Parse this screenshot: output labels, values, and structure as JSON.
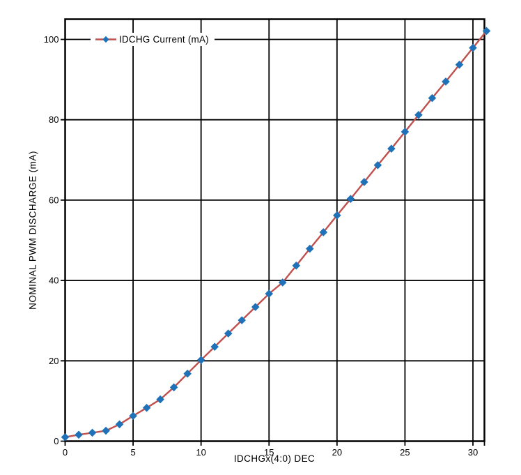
{
  "page": {
    "background": "#ffffff"
  },
  "chart_data": {
    "type": "line",
    "title": "",
    "xlabel": "IDCHGx(4:0) DEC",
    "ylabel": "NOMINAL PWM DISCHARGE (mA)",
    "legend_label": "IDCHG Current (mA)",
    "legend_position": "inside-top, centered on the 100 mA gridline",
    "grid": true,
    "grid_color": "#000000",
    "axis_color": "#000000",
    "xlim": [
      0,
      31
    ],
    "ylim": [
      0,
      105
    ],
    "x_ticks": [
      0,
      5,
      10,
      15,
      20,
      25,
      30
    ],
    "y_ticks": [
      0,
      20,
      40,
      60,
      80,
      100
    ],
    "x": [
      0,
      1,
      2,
      3,
      4,
      5,
      6,
      7,
      8,
      9,
      10,
      11,
      12,
      13,
      14,
      15,
      16,
      17,
      18,
      19,
      20,
      21,
      22,
      23,
      24,
      25,
      26,
      27,
      28,
      29,
      30,
      31
    ],
    "series": [
      {
        "name": "IDCHG Current (mA)",
        "line_color": "#c0504d",
        "marker": "diamond",
        "marker_color": "#1f72b8",
        "values": [
          1.0,
          1.6,
          2.1,
          2.6,
          4.2,
          6.3,
          8.3,
          10.4,
          13.4,
          16.8,
          20.2,
          23.5,
          26.8,
          30.1,
          33.4,
          36.7,
          39.5,
          43.7,
          47.9,
          52.0,
          56.2,
          60.3,
          64.5,
          68.7,
          72.8,
          77.0,
          81.2,
          85.4,
          89.5,
          93.7,
          97.9,
          102.1
        ]
      }
    ]
  }
}
